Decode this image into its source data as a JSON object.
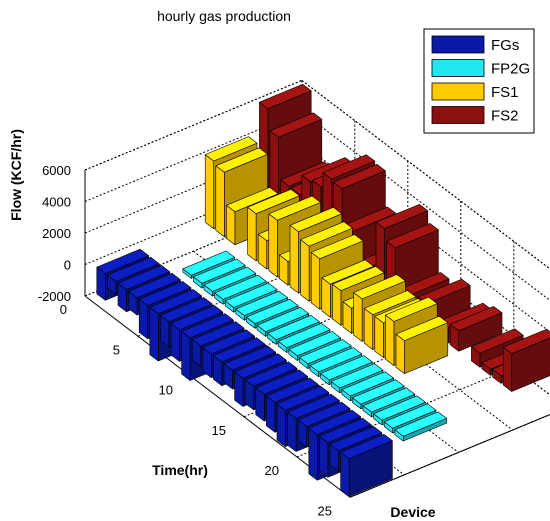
{
  "chart_data": {
    "type": "bar3d",
    "title": "hourly gas production",
    "ylabel": "Flow (KCF/hr)",
    "xlabel": "Time(hr)",
    "zlabel": "Device",
    "zlim": [
      -2000,
      6000
    ],
    "z_ticks": [
      "6000",
      "4000",
      "2000",
      "0",
      "-2000"
    ],
    "time_ticks": [
      "0",
      "5",
      "10",
      "15",
      "20",
      "25"
    ],
    "legend": {
      "placement": "top-right"
    },
    "series": [
      {
        "name": "FGs",
        "color": "#0a1aa6",
        "values": [
          -1700,
          -800,
          -1400,
          -1100,
          -2100,
          -3000,
          -1600,
          -2000,
          -2700,
          -1300,
          -1500,
          -1500,
          -1200,
          -1800,
          -1500,
          -1700,
          -1900,
          -2300,
          -2100,
          -1300,
          -2900,
          -2200,
          -1300,
          -2400
        ]
      },
      {
        "name": "FP2G",
        "color": "#22e6f0",
        "values": [
          0,
          0,
          0,
          -200,
          -300,
          -300,
          -300,
          -300,
          -300,
          -300,
          -300,
          -300,
          -300,
          -300,
          -300,
          -300,
          -300,
          -300,
          -300,
          -300,
          -300,
          -300,
          -300,
          -300
        ]
      },
      {
        "name": "FS1",
        "color": "#ffcc00",
        "values": [
          4300,
          4100,
          2100,
          0,
          3000,
          1800,
          3600,
          1500,
          3900,
          3500,
          3200,
          2100,
          2200,
          1600,
          2700,
          2200,
          2200,
          2800,
          2100,
          0,
          0,
          0,
          0,
          0
        ]
      },
      {
        "name": "FS2",
        "color": "#8c1010",
        "values": [
          6200,
          4900,
          2300,
          2300,
          3600,
          3800,
          4800,
          4700,
          2500,
          600,
          600,
          4200,
          3500,
          900,
          0,
          1500,
          0,
          1000,
          1300,
          0,
          900,
          400,
          500,
          2400
        ]
      }
    ]
  }
}
